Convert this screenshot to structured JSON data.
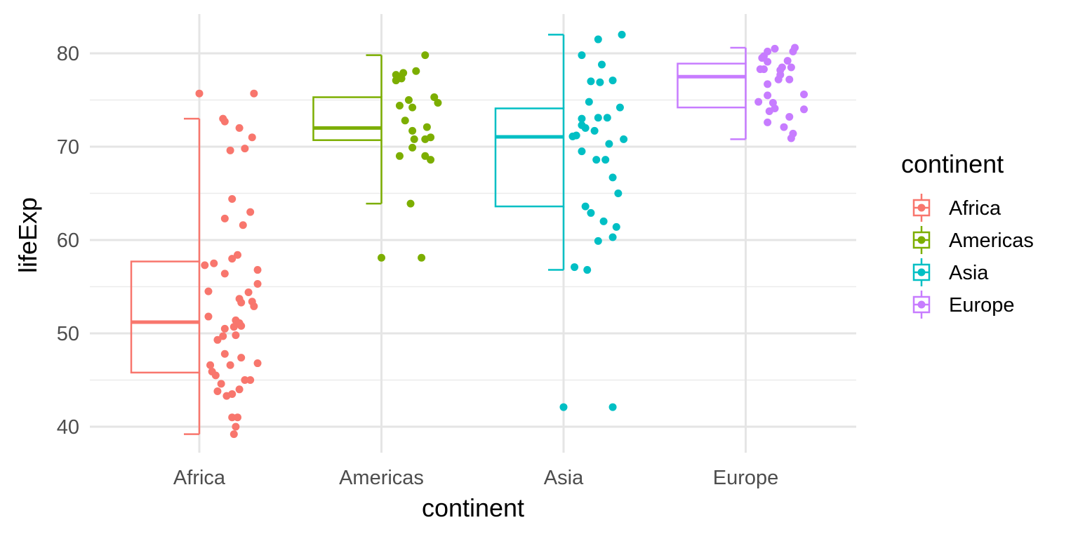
{
  "chart_data": {
    "type": "boxplot+jitter",
    "xlabel": "continent",
    "ylabel": "lifeExp",
    "ylim": [
      37.5,
      84
    ],
    "yticks": [
      40,
      50,
      60,
      70,
      80
    ],
    "categories": [
      "Africa",
      "Americas",
      "Asia",
      "Europe"
    ],
    "legend": {
      "title": "continent",
      "position": "right",
      "entries": [
        "Africa",
        "Americas",
        "Asia",
        "Europe"
      ]
    },
    "colors": {
      "Africa": "#F8766D",
      "Americas": "#7CAE00",
      "Asia": "#00BFC4",
      "Europe": "#C77CFF"
    },
    "boxes": [
      {
        "group": "Africa",
        "lower": 39.2,
        "q1": 45.8,
        "median": 51.2,
        "q3": 57.7,
        "upper": 73.0
      },
      {
        "group": "Americas",
        "lower": 63.9,
        "q1": 70.7,
        "median": 72.0,
        "q3": 75.3,
        "upper": 79.8
      },
      {
        "group": "Asia",
        "lower": 56.8,
        "q1": 63.6,
        "median": 71.05,
        "q3": 74.1,
        "upper": 82.0
      },
      {
        "group": "Europe",
        "lower": 70.8,
        "q1": 74.2,
        "median": 77.5,
        "q3": 78.9,
        "upper": 80.6
      }
    ],
    "points": {
      "Africa": [
        [
          0,
          75.7
        ],
        [
          0.3,
          75.7
        ],
        [
          0.13,
          73.0
        ],
        [
          0.14,
          72.7
        ],
        [
          0.22,
          72.0
        ],
        [
          0.29,
          71.0
        ],
        [
          0.17,
          69.6
        ],
        [
          0.25,
          69.8
        ],
        [
          0.18,
          64.4
        ],
        [
          0.28,
          63.0
        ],
        [
          0.14,
          62.3
        ],
        [
          0.24,
          61.6
        ],
        [
          0.21,
          58.4
        ],
        [
          0.18,
          58.0
        ],
        [
          0.03,
          57.3
        ],
        [
          0.08,
          57.5
        ],
        [
          0.32,
          56.8
        ],
        [
          0.14,
          56.4
        ],
        [
          0.32,
          55.3
        ],
        [
          0.05,
          54.5
        ],
        [
          0.27,
          54.4
        ],
        [
          0.22,
          53.7
        ],
        [
          0.23,
          53.3
        ],
        [
          0.29,
          53.4
        ],
        [
          0.3,
          52.9
        ],
        [
          0.05,
          51.8
        ],
        [
          0.2,
          51.4
        ],
        [
          0.22,
          51.1
        ],
        [
          0.19,
          50.7
        ],
        [
          0.14,
          50.5
        ],
        [
          0.23,
          50.8
        ],
        [
          0.13,
          49.7
        ],
        [
          0.2,
          49.8
        ],
        [
          0.1,
          49.3
        ],
        [
          0.14,
          47.8
        ],
        [
          0.23,
          47.4
        ],
        [
          0.32,
          46.8
        ],
        [
          0.06,
          46.6
        ],
        [
          0.17,
          46.6
        ],
        [
          0.07,
          45.9
        ],
        [
          0.09,
          45.5
        ],
        [
          0.12,
          44.6
        ],
        [
          0.25,
          45.0
        ],
        [
          0.28,
          45.0
        ],
        [
          0.1,
          43.8
        ],
        [
          0.22,
          44.0
        ],
        [
          0.18,
          43.5
        ],
        [
          0.15,
          43.3
        ],
        [
          0.18,
          41.0
        ],
        [
          0.21,
          41.0
        ],
        [
          0.2,
          40.0
        ],
        [
          0.19,
          39.2
        ]
      ],
      "Americas": [
        [
          0.24,
          79.8
        ],
        [
          0.19,
          78.1
        ],
        [
          0.12,
          77.9
        ],
        [
          0.08,
          77.7
        ],
        [
          0.1,
          77.4
        ],
        [
          0.08,
          77.1
        ],
        [
          0.11,
          77.3
        ],
        [
          0.29,
          75.3
        ],
        [
          0.15,
          75.0
        ],
        [
          0.31,
          74.7
        ],
        [
          0.1,
          74.4
        ],
        [
          0.17,
          74.2
        ],
        [
          0.13,
          72.8
        ],
        [
          0.25,
          72.1
        ],
        [
          0.17,
          71.7
        ],
        [
          0.27,
          71.0
        ],
        [
          0.18,
          70.8
        ],
        [
          0.24,
          70.8
        ],
        [
          0.17,
          69.9
        ],
        [
          0.1,
          69.0
        ],
        [
          0.24,
          69.0
        ],
        [
          0.27,
          68.6
        ],
        [
          0.16,
          63.9
        ],
        [
          0,
          58.1
        ],
        [
          0.22,
          58.1
        ]
      ],
      "Asia": [
        [
          0.19,
          81.5
        ],
        [
          0.32,
          82.0
        ],
        [
          0.1,
          79.8
        ],
        [
          0.21,
          78.8
        ],
        [
          0.15,
          77.0
        ],
        [
          0.2,
          76.9
        ],
        [
          0.27,
          77.1
        ],
        [
          0.14,
          74.8
        ],
        [
          0.31,
          74.2
        ],
        [
          0.1,
          73.0
        ],
        [
          0.1,
          72.3
        ],
        [
          0.12,
          72.0
        ],
        [
          0.19,
          73.1
        ],
        [
          0.24,
          73.1
        ],
        [
          0.07,
          71.2
        ],
        [
          0.05,
          71.1
        ],
        [
          0.17,
          71.7
        ],
        [
          0.33,
          70.8
        ],
        [
          0.25,
          70.3
        ],
        [
          0.1,
          69.5
        ],
        [
          0.18,
          68.6
        ],
        [
          0.23,
          68.6
        ],
        [
          0.27,
          66.7
        ],
        [
          0.3,
          65.0
        ],
        [
          0.12,
          63.6
        ],
        [
          0.15,
          62.9
        ],
        [
          0.22,
          62.0
        ],
        [
          0.29,
          61.4
        ],
        [
          0.27,
          60.3
        ],
        [
          0.19,
          59.9
        ],
        [
          0.06,
          57.1
        ],
        [
          0.13,
          56.8
        ],
        [
          0,
          42.1
        ],
        [
          0.27,
          42.1
        ]
      ],
      "Europe": [
        [
          0.16,
          80.5
        ],
        [
          0.27,
          80.6
        ],
        [
          0.26,
          80.2
        ],
        [
          0.12,
          80.2
        ],
        [
          0.1,
          79.7
        ],
        [
          0.09,
          79.5
        ],
        [
          0.12,
          79.1
        ],
        [
          0.23,
          79.2
        ],
        [
          0.25,
          78.5
        ],
        [
          0.2,
          78.5
        ],
        [
          0.19,
          78.2
        ],
        [
          0.08,
          78.3
        ],
        [
          0.1,
          78.3
        ],
        [
          0.19,
          77.7
        ],
        [
          0.18,
          77.2
        ],
        [
          0.24,
          77.2
        ],
        [
          0.12,
          76.7
        ],
        [
          0.32,
          75.6
        ],
        [
          0.12,
          75.5
        ],
        [
          0.15,
          74.7
        ],
        [
          0.07,
          74.8
        ],
        [
          0.16,
          74.1
        ],
        [
          0.13,
          73.8
        ],
        [
          0.32,
          74.0
        ],
        [
          0.24,
          73.2
        ],
        [
          0.12,
          72.6
        ],
        [
          0.21,
          72.1
        ],
        [
          0.26,
          71.4
        ],
        [
          0.25,
          70.9
        ]
      ]
    }
  }
}
